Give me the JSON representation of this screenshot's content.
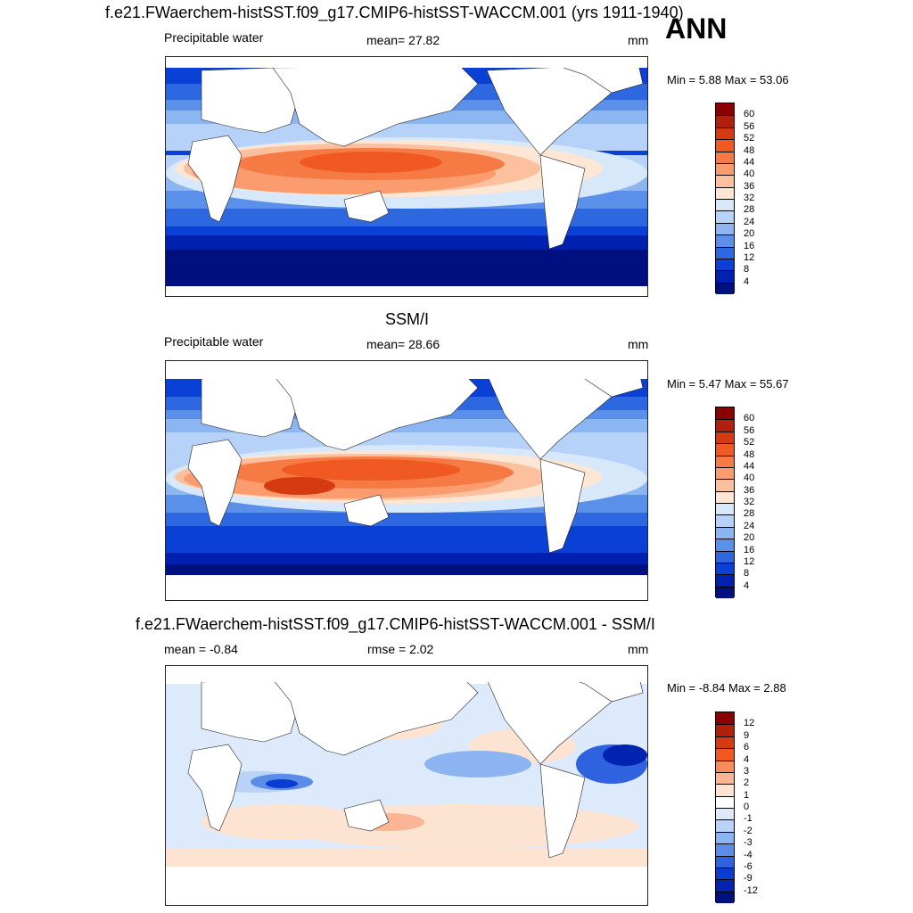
{
  "main_title": "f.e21.FWaerchem-histSST.f09_g17.CMIP6-histSST-WACCM.001 (yrs 1911-1940)",
  "season": "ANN",
  "panels": [
    {
      "subtitle": "",
      "left_label": "Precipitable water",
      "center_label": "mean=  27.82",
      "units": "mm",
      "minmax": "Min =   5.88 Max =  53.06",
      "levels": [
        "60",
        "56",
        "52",
        "48",
        "44",
        "40",
        "36",
        "32",
        "28",
        "24",
        "20",
        "16",
        "12",
        "8",
        "4"
      ]
    },
    {
      "subtitle": "SSM/I",
      "left_label": "Precipitable water",
      "center_label": "mean=  28.66",
      "units": "mm",
      "minmax": "Min =   5.47 Max =  55.67",
      "levels": [
        "60",
        "56",
        "52",
        "48",
        "44",
        "40",
        "36",
        "32",
        "28",
        "24",
        "20",
        "16",
        "12",
        "8",
        "4"
      ]
    },
    {
      "subtitle": "f.e21.FWaerchem-histSST.f09_g17.CMIP6-histSST-WACCM.001 - SSM/I",
      "left_label": "mean =  -0.84",
      "center_label": "rmse =   2.02",
      "units": "mm",
      "minmax": "Min =  -8.84 Max =   2.88",
      "levels": [
        "12",
        "9",
        "6",
        "4",
        "3",
        "2",
        "1",
        "0",
        "-1",
        "-2",
        "-3",
        "-4",
        "-6",
        "-9",
        "-12"
      ]
    }
  ],
  "colors": {
    "abs_scale": [
      "#8b0000",
      "#b0200c",
      "#d63a10",
      "#f05a22",
      "#f67a44",
      "#fa9c6e",
      "#fcc09e",
      "#fde6d4",
      "#d8e8fb",
      "#b6d2f8",
      "#8cb6f2",
      "#5a90ea",
      "#2e68e0",
      "#0a40d6",
      "#0020b0",
      "#001080"
    ],
    "diff_scale": [
      "#8b0000",
      "#b0200c",
      "#d63a10",
      "#f05a22",
      "#f88c5c",
      "#fbb494",
      "#fde3d2",
      "#ffffff",
      "#dceafc",
      "#b8d2f8",
      "#8cb4f0",
      "#5a8ce8",
      "#2e62de",
      "#0a3cd0",
      "#0024b0",
      "#001080"
    ]
  }
}
